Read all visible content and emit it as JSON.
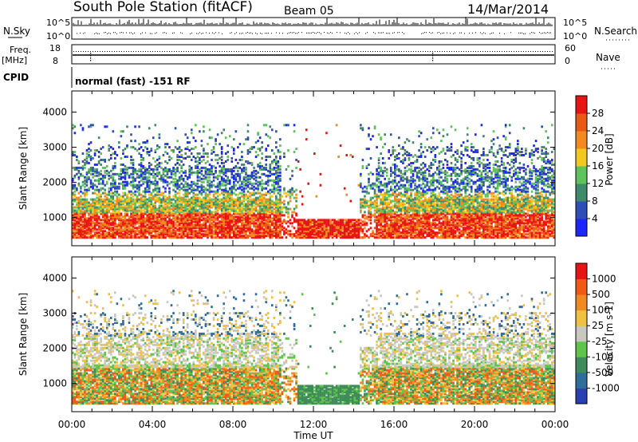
{
  "header": {
    "station": "South Pole Station (fitACF)",
    "beam": "Beam 05",
    "date": "14/Mar/2014"
  },
  "summary_panels": {
    "nsky": {
      "label": "N.Sky",
      "ticks": [
        "10^5",
        "10^0"
      ]
    },
    "nsearch": {
      "label": "N.Search",
      "ticks": [
        "10^5",
        "10^0"
      ]
    },
    "freq": {
      "label_line1": "Freq.",
      "label_line2": "[MHz]",
      "ticks": [
        "18",
        "8"
      ]
    },
    "nave": {
      "label": "Nave",
      "ticks": [
        "60",
        "0"
      ]
    },
    "cpid": {
      "label": "CPID",
      "value": "normal (fast) -151 RF"
    }
  },
  "chart_data": [
    {
      "type": "heatmap",
      "name": "power-panel",
      "ylabel": "Slant Range [km]",
      "ylim": [
        200,
        4600
      ],
      "yticks": [
        1000,
        2000,
        3000,
        4000
      ],
      "xlim": [
        0,
        24
      ],
      "xticks": [
        "00:00",
        "04:00",
        "08:00",
        "12:00",
        "16:00",
        "20:00",
        "00:00"
      ],
      "colorbar": {
        "label": "Power [dB]",
        "ticks": [
          4,
          8,
          12,
          16,
          20,
          24,
          28
        ],
        "colors": [
          "#1e26ff",
          "#2e4fb8",
          "#3e8a6a",
          "#5cc45a",
          "#f2c81e",
          "#f28a1e",
          "#e85a14",
          "#e81414"
        ]
      }
    },
    {
      "type": "heatmap",
      "name": "velocity-panel",
      "ylabel": "Slant Range [km]",
      "xlabel": "Time UT",
      "ylim": [
        200,
        4600
      ],
      "yticks": [
        1000,
        2000,
        3000,
        4000
      ],
      "xlim": [
        0,
        24
      ],
      "xticks": [
        "00:00",
        "04:00",
        "08:00",
        "12:00",
        "16:00",
        "20:00",
        "00:00"
      ],
      "colorbar": {
        "label": "Velocity [m s-1]",
        "ticks": [
          "1000",
          "500",
          "100",
          "25",
          "-25",
          "-100",
          "-500",
          "-1000"
        ],
        "colors": [
          "#2a3fb0",
          "#2f6e9a",
          "#3f8c5a",
          "#5ec44a",
          "#c8c8c0",
          "#f0c040",
          "#f08a20",
          "#f05a14",
          "#e81414"
        ]
      }
    }
  ]
}
